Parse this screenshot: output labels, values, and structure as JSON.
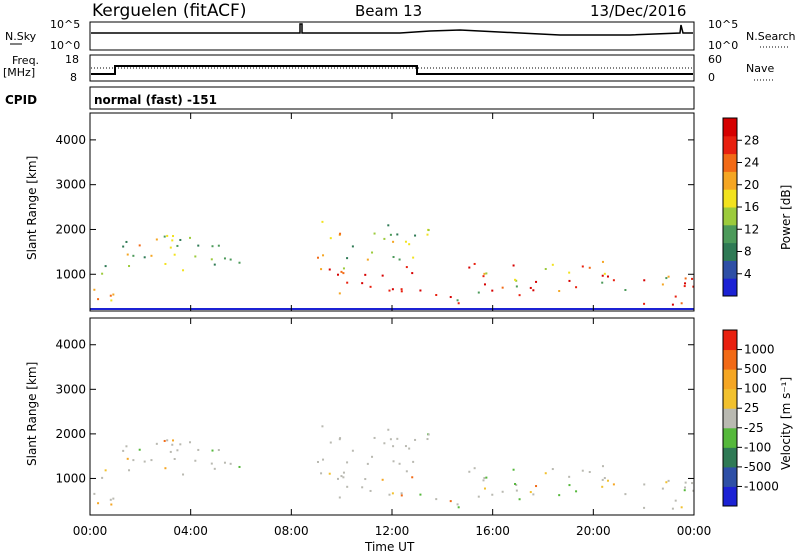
{
  "header": {
    "station": "Kerguelen (fitACF)",
    "beam": "Beam 13",
    "date": "13/Dec/2016"
  },
  "noise_panel": {
    "left_label": "N.Sky",
    "left_ticks": [
      "10^5",
      "10^0"
    ],
    "right_label": "N.Search",
    "right_ticks": [
      "10^5",
      "10^0"
    ]
  },
  "freq_panel": {
    "left_label_top": "Freq.",
    "left_label_unit": "[MHz]",
    "left_ticks": [
      "18",
      "8"
    ],
    "right_label": "Nave",
    "right_ticks": [
      "60",
      "0"
    ]
  },
  "cpid_panel": {
    "label": "CPID",
    "text": "normal (fast) -151"
  },
  "x_axis": {
    "ticks": [
      "00:00",
      "04:00",
      "08:00",
      "12:00",
      "16:00",
      "20:00",
      "00:00"
    ],
    "label": "Time UT"
  },
  "power_panel": {
    "ylabel": "Slant Range [km]",
    "yticks": [
      "4000",
      "3000",
      "2000",
      "1000"
    ],
    "colorbar_label": "Power [dB]",
    "colorbar_ticks": [
      "28",
      "24",
      "20",
      "16",
      "12",
      "8",
      "4"
    ],
    "colors": [
      "#1c22d4",
      "#2e4fa6",
      "#2f7a55",
      "#4c9a5a",
      "#9ccb3c",
      "#f2e21e",
      "#f5a623",
      "#f26a16",
      "#e8200f",
      "#d60000"
    ]
  },
  "velocity_panel": {
    "ylabel": "Slant Range [km]",
    "yticks": [
      "4000",
      "3000",
      "2000",
      "1000"
    ],
    "colorbar_label": "Velocity [m s⁻¹]",
    "colorbar_ticks": [
      "1000",
      "500",
      "100",
      "25",
      "-25",
      "-100",
      "-500",
      "-1000"
    ],
    "colors": [
      "#1c22d4",
      "#2e4fa6",
      "#2f7a55",
      "#55b83b",
      "#b9b9b1",
      "#f2c12e",
      "#f5a623",
      "#f26a16",
      "#e8200f"
    ]
  },
  "chart_data": {
    "type": "heatmap",
    "x_range_ut_hours": [
      0,
      24
    ],
    "y_range_km": [
      180,
      4600
    ],
    "scatter_regions_ut_km": [
      {
        "t0": 0.0,
        "t1": 1.2,
        "r0": 300,
        "r1": 1100,
        "power": "high"
      },
      {
        "t0": 0.0,
        "t1": 6.0,
        "r0": 1100,
        "r1": 1900,
        "power": "medium"
      },
      {
        "t0": 8.8,
        "t1": 12.8,
        "r0": 500,
        "r1": 1200,
        "power": "high"
      },
      {
        "t0": 9.0,
        "t1": 13.5,
        "r0": 1300,
        "r1": 2200,
        "power": "medium"
      },
      {
        "t0": 13.0,
        "t1": 15.0,
        "r0": 300,
        "r1": 700,
        "power": "high"
      },
      {
        "t0": 15.0,
        "t1": 21.0,
        "r0": 500,
        "r1": 1300,
        "power": "high"
      },
      {
        "t0": 20.5,
        "t1": 24.0,
        "r0": 300,
        "r1": 1000,
        "power": "high"
      }
    ]
  }
}
